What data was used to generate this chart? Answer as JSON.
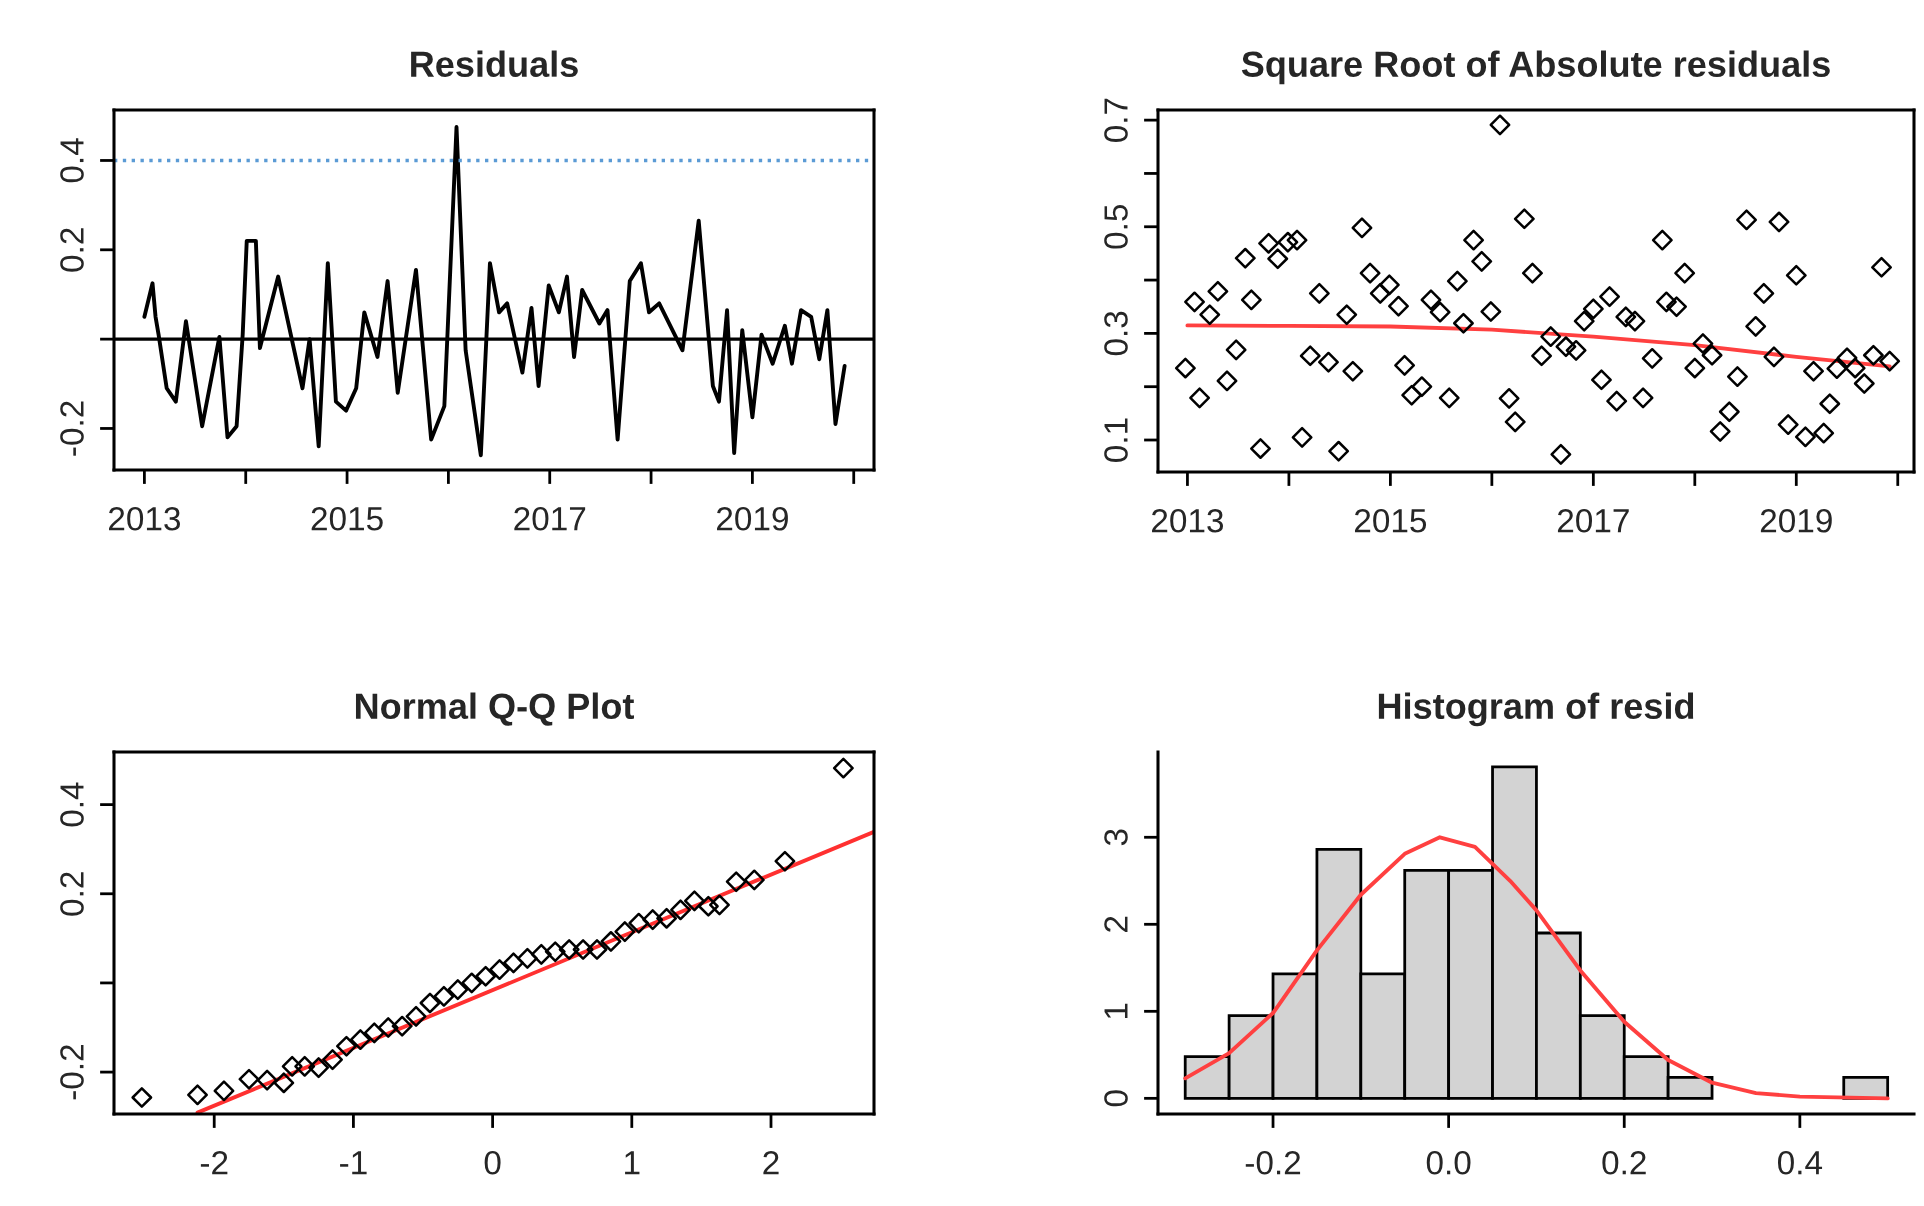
{
  "chart_data": [
    {
      "type": "line",
      "title": "Residuals",
      "x": [
        2013.0,
        2013.08,
        2013.11,
        2013.14,
        2013.22,
        2013.31,
        2013.41,
        2013.57,
        2013.74,
        2013.82,
        2013.91,
        2013.97,
        2014.01,
        2014.1,
        2014.14,
        2014.32,
        2014.56,
        2014.63,
        2014.72,
        2014.81,
        2014.89,
        2014.99,
        2015.09,
        2015.17,
        2015.3,
        2015.4,
        2015.5,
        2015.68,
        2015.83,
        2015.96,
        2016.08,
        2016.17,
        2016.32,
        2016.41,
        2016.5,
        2016.58,
        2016.73,
        2016.82,
        2016.89,
        2016.99,
        2017.09,
        2017.17,
        2017.24,
        2017.32,
        2017.49,
        2017.57,
        2017.67,
        2017.79,
        2017.9,
        2017.98,
        2018.08,
        2018.31,
        2018.47,
        2018.61,
        2018.67,
        2018.75,
        2018.82,
        2018.9,
        2019.0,
        2019.09,
        2019.2,
        2019.32,
        2019.39,
        2019.48,
        2019.58,
        2019.66,
        2019.74,
        2019.82,
        2019.91
      ],
      "series": [
        {
          "color": "#000000",
          "values": [
            0.05,
            0.125,
            0.05,
            0.01,
            -0.11,
            -0.14,
            0.04,
            -0.195,
            0.005,
            -0.22,
            -0.195,
            0.01,
            0.22,
            0.22,
            -0.02,
            0.14,
            -0.11,
            0.0,
            -0.24,
            0.17,
            -0.14,
            -0.16,
            -0.11,
            0.06,
            -0.04,
            0.13,
            -0.12,
            0.155,
            -0.225,
            -0.15,
            0.475,
            -0.025,
            -0.26,
            0.17,
            0.06,
            0.08,
            -0.075,
            0.07,
            -0.105,
            0.12,
            0.06,
            0.14,
            -0.04,
            0.11,
            0.035,
            0.065,
            -0.225,
            0.13,
            0.17,
            0.06,
            0.08,
            -0.025,
            0.265,
            -0.105,
            -0.14,
            0.065,
            -0.255,
            0.02,
            -0.175,
            0.01,
            -0.055,
            0.03,
            -0.055,
            0.065,
            0.05,
            -0.045,
            0.065,
            -0.19,
            -0.06
          ]
        }
      ],
      "ref_lines": [
        {
          "axis": "y",
          "value": 0,
          "color": "#000000",
          "line_style": "solid"
        },
        {
          "axis": "y",
          "value": 0.4,
          "color": "#5b9bd5",
          "line_style": "dotted"
        }
      ],
      "xlim": [
        2012.7,
        2020.2
      ],
      "xticks": [
        2013,
        {
          "value": 2014,
          "label": null
        },
        2015,
        {
          "value": 2016,
          "label": null
        },
        2017,
        {
          "value": 2018,
          "label": null
        },
        2019,
        {
          "value": 2020,
          "label": null
        }
      ],
      "ylim": [
        -0.293,
        0.513
      ],
      "yticks": [
        -0.2,
        {
          "value": 0,
          "label": null
        },
        0.2,
        0.4
      ]
    },
    {
      "type": "scatter",
      "title": "Square Root of Absolute residuals",
      "x": [
        2012.98,
        2013.12,
        2013.07,
        2013.22,
        2013.3,
        2013.39,
        2013.48,
        2013.57,
        2013.63,
        2013.72,
        2013.8,
        2013.89,
        2013.99,
        2014.08,
        2014.13,
        2014.21,
        2014.3,
        2014.39,
        2014.49,
        2014.57,
        2014.63,
        2014.72,
        2014.8,
        2014.9,
        2014.99,
        2015.08,
        2015.14,
        2015.21,
        2015.31,
        2015.4,
        2015.49,
        2015.58,
        2015.66,
        2015.72,
        2015.82,
        2015.9,
        2015.99,
        2016.08,
        2016.17,
        2016.23,
        2016.32,
        2016.4,
        2016.49,
        2016.58,
        2016.68,
        2016.73,
        2016.83,
        2016.91,
        2017.0,
        2017.08,
        2017.16,
        2017.23,
        2017.32,
        2017.41,
        2017.49,
        2017.58,
        2017.68,
        2017.72,
        2017.82,
        2017.9,
        2018.0,
        2018.08,
        2018.17,
        2018.25,
        2018.34,
        2018.42,
        2018.51,
        2018.6,
        2018.68,
        2018.78,
        2018.83,
        2018.92,
        2019.0,
        2019.09,
        2019.17,
        2019.27,
        2019.33,
        2019.4,
        2019.5,
        2019.58,
        2019.67,
        2019.76,
        2019.84,
        2019.92
      ],
      "series": [
        {
          "color": "#000000",
          "marker": "diamond",
          "values": [
            0.235,
            0.179,
            0.359,
            0.335,
            0.379,
            0.211,
            0.269,
            0.441,
            0.363,
            0.084,
            0.469,
            0.44,
            0.471,
            0.475,
            0.105,
            0.258,
            0.375,
            0.246,
            0.079,
            0.335,
            0.229,
            0.498,
            0.413,
            0.375,
            0.391,
            0.351,
            0.24,
            0.184,
            0.2,
            0.363,
            0.34,
            0.179,
            0.398,
            0.319,
            0.475,
            0.435,
            0.341,
            0.691,
            0.178,
            0.134,
            0.515,
            0.413,
            0.258,
            0.294,
            0.073,
            0.275,
            0.268,
            0.323,
            0.346,
            0.213,
            0.369,
            0.173,
            0.331,
            0.323,
            0.179,
            0.253,
            0.475,
            0.359,
            0.35,
            0.413,
            0.235,
            0.281,
            0.259,
            0.116,
            0.153,
            0.219,
            0.513,
            0.313,
            0.375,
            0.256,
            0.509,
            0.129,
            0.409,
            0.106,
            0.229,
            0.113,
            0.168,
            0.234,
            0.254,
            0.235,
            0.206,
            0.259,
            0.424,
            0.248
          ]
        },
        {
          "type": "line",
          "color": "#ff4040",
          "x": [
            2013,
            2014,
            2015,
            2016,
            2017,
            2018,
            2019,
            2019.92
          ],
          "values": [
            0.315,
            0.314,
            0.313,
            0.307,
            0.294,
            0.278,
            0.256,
            0.238
          ]
        }
      ],
      "xlim": [
        2012.71,
        2020.16
      ],
      "xticks": [
        2013,
        {
          "value": 2014,
          "label": null
        },
        2015,
        {
          "value": 2016,
          "label": null
        },
        2017,
        {
          "value": 2018,
          "label": null
        },
        2019,
        {
          "value": 2020,
          "label": null
        }
      ],
      "ylim": [
        0.04,
        0.719
      ],
      "yticks": [
        0.1,
        {
          "value": 0.2,
          "label": null
        },
        0.3,
        {
          "value": 0.4,
          "label": null
        },
        0.5,
        {
          "value": 0.6,
          "label": null
        },
        0.7
      ]
    },
    {
      "type": "scatter",
      "title": "Normal Q-Q Plot",
      "x": [
        -2.52,
        -2.12,
        -1.93,
        -1.75,
        -1.62,
        -1.5,
        -1.44,
        -1.35,
        -1.25,
        -1.15,
        -1.05,
        -0.95,
        -0.85,
        -0.75,
        -0.65,
        -0.55,
        -0.45,
        -0.35,
        -0.25,
        -0.15,
        -0.05,
        0.05,
        0.15,
        0.25,
        0.35,
        0.45,
        0.55,
        0.65,
        0.75,
        0.85,
        0.95,
        1.05,
        1.15,
        1.25,
        1.35,
        1.45,
        1.55,
        1.63,
        1.75,
        1.88,
        2.1,
        2.52
      ],
      "series": [
        {
          "color": "#000000",
          "marker": "diamond",
          "values": [
            -0.257,
            -0.251,
            -0.242,
            -0.216,
            -0.218,
            -0.224,
            -0.187,
            -0.187,
            -0.19,
            -0.172,
            -0.142,
            -0.127,
            -0.112,
            -0.1,
            -0.097,
            -0.075,
            -0.045,
            -0.03,
            -0.015,
            0.0,
            0.015,
            0.03,
            0.045,
            0.055,
            0.064,
            0.07,
            0.075,
            0.075,
            0.075,
            0.093,
            0.115,
            0.134,
            0.142,
            0.145,
            0.164,
            0.184,
            0.172,
            0.175,
            0.227,
            0.231,
            0.273,
            0.482
          ]
        },
        {
          "type": "line",
          "color": "#ff3030",
          "x": [
            -2.12,
            2.74
          ],
          "values": [
            -0.291,
            0.339
          ]
        }
      ],
      "xlim": [
        -2.72,
        2.74
      ],
      "xticks": [
        -2,
        -1,
        0,
        1,
        2
      ],
      "ylim": [
        -0.294,
        0.518
      ],
      "yticks": [
        -0.2,
        {
          "value": 0,
          "label": null
        },
        0.2,
        0.4
      ]
    },
    {
      "type": "histogram",
      "title": "Histogram of resid",
      "color": "#d3d3d3",
      "bins": [
        -0.3,
        -0.25,
        -0.2,
        -0.15,
        -0.1,
        -0.05,
        0,
        0.05,
        0.1,
        0.15,
        0.2,
        0.25,
        0.3,
        0.35,
        0.4,
        0.45,
        0.5
      ],
      "values": [
        0.48,
        0.95,
        1.43,
        2.86,
        1.43,
        2.62,
        2.62,
        3.81,
        1.9,
        0.95,
        0.48,
        0.24,
        0,
        0,
        0,
        0.24
      ],
      "series": [
        {
          "type": "line",
          "color": "#ff4040",
          "x": [
            -0.3,
            -0.25,
            -0.2,
            -0.15,
            -0.1,
            -0.05,
            -0.01,
            0.03,
            0.07,
            0.1,
            0.15,
            0.2,
            0.25,
            0.3,
            0.35,
            0.4,
            0.5
          ],
          "values": [
            0.23,
            0.52,
            0.98,
            1.7,
            2.34,
            2.81,
            3.0,
            2.89,
            2.5,
            2.16,
            1.47,
            0.88,
            0.44,
            0.18,
            0.06,
            0.02,
            0.0
          ]
        }
      ],
      "xlim": [
        -0.331,
        0.53
      ],
      "xticks": [
        -0.2,
        {
          "value": 0,
          "label": "0.0"
        },
        0.2,
        0.4
      ],
      "ylim": [
        -0.18,
        3.98
      ],
      "yticks": [
        0,
        1,
        2,
        3
      ]
    }
  ]
}
